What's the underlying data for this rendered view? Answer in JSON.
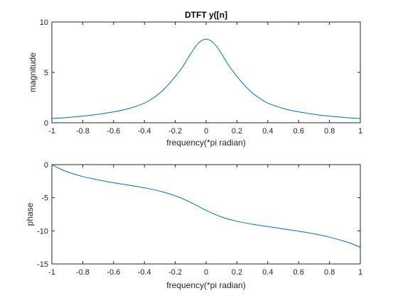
{
  "chart_data": [
    {
      "type": "line",
      "title": "DTFT y([n]",
      "xlabel": "frequency(*pi radian)",
      "ylabel": "magnitude",
      "xlim": [
        -1,
        1
      ],
      "ylim": [
        0,
        10
      ],
      "xticks": [
        "-1",
        "-0.8",
        "-0.6",
        "-0.4",
        "-0.2",
        "0",
        "0.2",
        "0.4",
        "0.6",
        "0.8",
        "1"
      ],
      "yticks": [
        "0",
        "5",
        "10"
      ],
      "line_color": "#0072BD",
      "grid": false,
      "series": [
        {
          "x": [
            -1,
            -0.9,
            -0.8,
            -0.7,
            -0.6,
            -0.5,
            -0.4,
            -0.35,
            -0.3,
            -0.25,
            -0.2,
            -0.15,
            -0.1,
            -0.05,
            0,
            0.05,
            0.1,
            0.15,
            0.2,
            0.25,
            0.3,
            0.35,
            0.4,
            0.5,
            0.6,
            0.7,
            0.8,
            0.9,
            1
          ],
          "y": [
            0.42,
            0.52,
            0.66,
            0.84,
            1.08,
            1.42,
            1.95,
            2.4,
            2.95,
            3.7,
            4.6,
            5.6,
            6.85,
            7.9,
            8.3,
            7.9,
            6.85,
            5.6,
            4.6,
            3.7,
            2.95,
            2.4,
            1.95,
            1.42,
            1.08,
            0.84,
            0.66,
            0.52,
            0.42
          ]
        }
      ]
    },
    {
      "type": "line",
      "title": "",
      "xlabel": "frequency(*pi radian)",
      "ylabel": "phase",
      "xlim": [
        -1,
        1
      ],
      "ylim": [
        -15,
        0
      ],
      "xticks": [
        "-1",
        "-0.8",
        "-0.6",
        "-0.4",
        "-0.2",
        "0",
        "0.2",
        "0.4",
        "0.6",
        "0.8",
        "1"
      ],
      "yticks": [
        "-15",
        "-10",
        "-5",
        "0"
      ],
      "line_color": "#0072BD",
      "grid": false,
      "series": [
        {
          "x": [
            -1,
            -0.95,
            -0.9,
            -0.8,
            -0.7,
            -0.6,
            -0.5,
            -0.4,
            -0.3,
            -0.2,
            -0.1,
            0,
            0.1,
            0.2,
            0.3,
            0.4,
            0.5,
            0.6,
            0.7,
            0.8,
            0.9,
            0.95,
            1
          ],
          "y": [
            0,
            -0.6,
            -1.1,
            -1.8,
            -2.3,
            -2.75,
            -3.1,
            -3.5,
            -4.0,
            -4.7,
            -5.7,
            -6.9,
            -7.9,
            -8.55,
            -9.0,
            -9.35,
            -9.7,
            -10.05,
            -10.45,
            -10.95,
            -11.6,
            -12.0,
            -12.5
          ]
        }
      ]
    }
  ]
}
